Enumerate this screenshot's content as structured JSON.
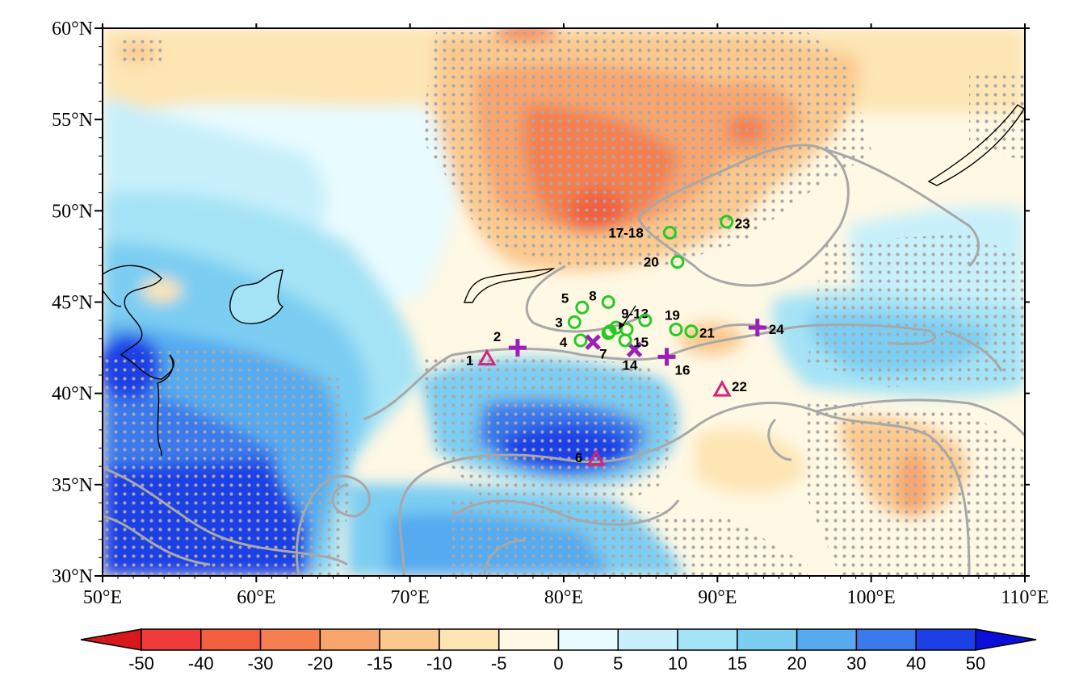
{
  "map": {
    "lat_ticks": [
      "30°N",
      "35°N",
      "40°N",
      "45°N",
      "50°N",
      "55°N",
      "60°N"
    ],
    "lon_ticks": [
      "50°E",
      "60°E",
      "70°E",
      "80°E",
      "90°E",
      "100°E",
      "110°E"
    ],
    "extent": {
      "lon_min": 50,
      "lon_max": 110,
      "lat_min": 30,
      "lat_max": 60
    }
  },
  "colorbar": {
    "labels": [
      "-50",
      "-40",
      "-30",
      "-20",
      "-15",
      "-10",
      "-5",
      "0",
      "5",
      "10",
      "15",
      "20",
      "30",
      "40",
      "50"
    ],
    "colors": [
      "#d7191c",
      "#f03b3b",
      "#f2603f",
      "#f57f50",
      "#f8a56e",
      "#fbc98e",
      "#fde5b4",
      "#fff8e4",
      "#e8fbff",
      "#c8f0fb",
      "#a4e3f5",
      "#7ccdf2",
      "#55aaf0",
      "#3a79ec",
      "#1d40e6",
      "#0a10d8"
    ]
  },
  "sites": [
    {
      "label": "1",
      "symbol": "triangle",
      "lon": 75.0,
      "lat": 41.9,
      "color": "#d6227a"
    },
    {
      "label": "2",
      "symbol": "plus",
      "lon": 77.0,
      "lat": 42.5,
      "color": "#9b1fb8"
    },
    {
      "label": "3",
      "symbol": "circle",
      "lon": 80.7,
      "lat": 43.9,
      "color": "#22cc22"
    },
    {
      "label": "4",
      "symbol": "circle",
      "lon": 81.1,
      "lat": 42.9,
      "color": "#22cc22"
    },
    {
      "label": "5",
      "symbol": "circle",
      "lon": 81.2,
      "lat": 44.7,
      "color": "#22cc22"
    },
    {
      "label": "6",
      "symbol": "triangle",
      "lon": 82.1,
      "lat": 36.4,
      "color": "#d6227a"
    },
    {
      "label": "7",
      "symbol": "cross",
      "lon": 81.9,
      "lat": 42.8,
      "color": "#9b1fb8"
    },
    {
      "label": "8",
      "symbol": "circle",
      "lon": 82.9,
      "lat": 45.0,
      "color": "#22cc22"
    },
    {
      "label": "9-13",
      "symbol": "circle",
      "lon": 83.0,
      "lat": 43.4,
      "color": "#22cc22"
    },
    {
      "label": "14",
      "symbol": "cross",
      "lon": 84.6,
      "lat": 42.4,
      "color": "#9b1fb8"
    },
    {
      "label": "15",
      "symbol": "circle",
      "lon": 84.0,
      "lat": 42.9,
      "color": "#22cc22"
    },
    {
      "label": "16",
      "symbol": "plus",
      "lon": 86.7,
      "lat": 42.0,
      "color": "#9b1fb8"
    },
    {
      "label": "17-18",
      "symbol": "circle",
      "lon": 86.9,
      "lat": 48.8,
      "color": "#22cc22"
    },
    {
      "label": "19",
      "symbol": "circle",
      "lon": 87.3,
      "lat": 43.5,
      "color": "#22cc22"
    },
    {
      "label": "20",
      "symbol": "circle",
      "lon": 87.4,
      "lat": 47.2,
      "color": "#22cc22"
    },
    {
      "label": "21",
      "symbol": "circle",
      "lon": 88.3,
      "lat": 43.4,
      "color": "#22cc22"
    },
    {
      "label": "22",
      "symbol": "triangle",
      "lon": 90.3,
      "lat": 40.2,
      "color": "#d6227a"
    },
    {
      "label": "23",
      "symbol": "circle",
      "lon": 90.6,
      "lat": 49.4,
      "color": "#22cc22"
    },
    {
      "label": "24",
      "symbol": "plus",
      "lon": 92.6,
      "lat": 43.6,
      "color": "#9b1fb8"
    }
  ]
}
